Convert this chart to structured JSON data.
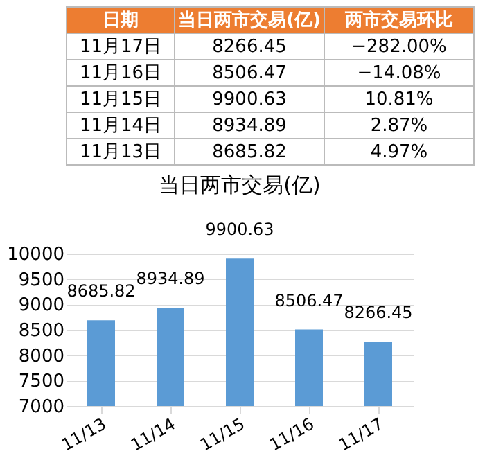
{
  "chart_data": [
    {
      "type": "other",
      "categories": [
        "日期",
        "当日两市交易(亿)",
        "两市交易环比"
      ],
      "y_categories": [
        "11月17日",
        "11月16日",
        "11月15日",
        "11月14日",
        "11月13日"
      ],
      "cell_labels": [
        [
          "8266.45",
          "−282.00%"
        ],
        [
          "8506.47",
          "−14.08%"
        ],
        [
          "9900.63",
          "10.81%"
        ],
        [
          "8934.89",
          "2.87%"
        ],
        [
          "8685.82",
          "4.97%"
        ]
      ],
      "color": "#ed7d31"
    },
    {
      "type": "bar",
      "title": "当日两市交易(亿)",
      "categories": [
        "11/13",
        "11/14",
        "11/15",
        "11/16",
        "11/17"
      ],
      "values": [
        8685.82,
        8934.89,
        9900.63,
        8506.47,
        8266.45
      ],
      "color": "#5b9bd5",
      "ylim": [
        7000,
        10000
      ],
      "yticks": [
        7000,
        7500,
        8000,
        8500,
        9000,
        9500,
        10000
      ],
      "grid": "y",
      "data_labels": true
    }
  ]
}
